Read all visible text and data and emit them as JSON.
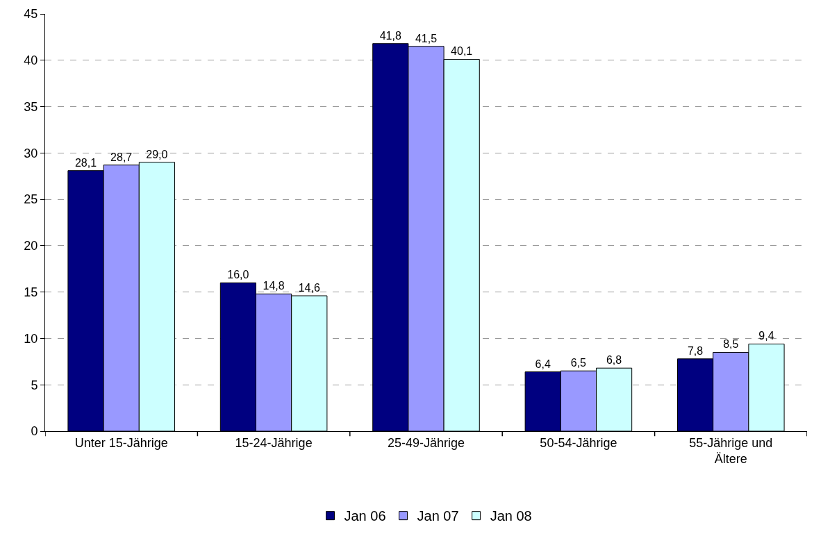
{
  "chart_data": {
    "type": "bar",
    "categories": [
      "Unter 15-Jährige",
      "15-24-Jährige",
      "25-49-Jährige",
      "50-54-Jährige",
      "55-Jährige und Ältere"
    ],
    "series": [
      {
        "name": "Jan 06",
        "color": "#000080",
        "values": [
          28.1,
          16.0,
          41.8,
          6.4,
          7.8
        ],
        "value_labels": [
          "28,1",
          "16,0",
          "41,8",
          "6,4",
          "7,8"
        ]
      },
      {
        "name": "Jan 07",
        "color": "#9999ff",
        "values": [
          28.7,
          14.8,
          41.5,
          6.5,
          8.5
        ],
        "value_labels": [
          "28,7",
          "14,8",
          "41,5",
          "6,5",
          "8,5"
        ]
      },
      {
        "name": "Jan 08",
        "color": "#ccffff",
        "values": [
          29.0,
          14.6,
          40.1,
          6.8,
          9.4
        ],
        "value_labels": [
          "29,0",
          "14,6",
          "40,1",
          "6,8",
          "9,4"
        ]
      }
    ],
    "ylim": [
      0,
      45
    ],
    "yticks": [
      0,
      5,
      10,
      15,
      20,
      25,
      30,
      35,
      40,
      45
    ],
    "grid": "y",
    "legend": "bottom"
  }
}
